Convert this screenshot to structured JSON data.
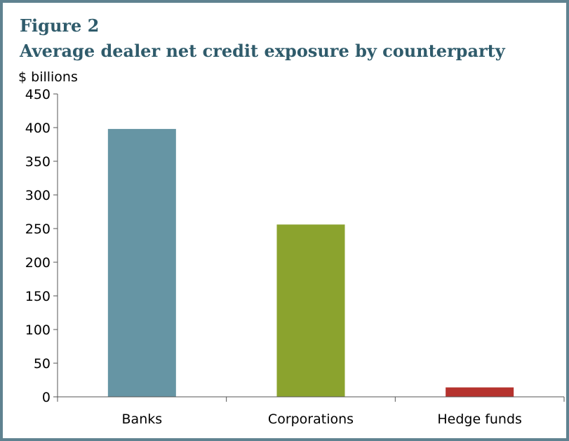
{
  "figure": {
    "label": "Figure 2",
    "title": "Average dealer net credit exposure by counterparty"
  },
  "chart_data": {
    "type": "bar",
    "title": "Average dealer net credit exposure by counterparty",
    "ylabel": "$ billions",
    "xlabel": "",
    "categories": [
      "Banks",
      "Corporations",
      "Hedge funds"
    ],
    "values": [
      398,
      256,
      14
    ],
    "ylim": [
      0,
      450
    ],
    "yticks": [
      0,
      50,
      100,
      150,
      200,
      250,
      300,
      350,
      400,
      450
    ],
    "colors": [
      "#6695a4",
      "#8ba32e",
      "#b5332e"
    ],
    "grid": false,
    "legend": "none"
  },
  "colors": {
    "frame": "#5f8290",
    "title": "#2f5b6b"
  }
}
